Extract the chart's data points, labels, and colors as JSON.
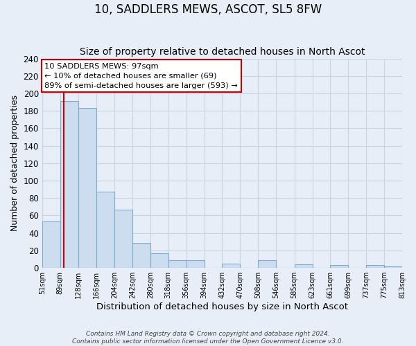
{
  "title": "10, SADDLERS MEWS, ASCOT, SL5 8FW",
  "subtitle": "Size of property relative to detached houses in North Ascot",
  "xlabel": "Distribution of detached houses by size in North Ascot",
  "ylabel": "Number of detached properties",
  "bin_edges": [
    51,
    89,
    128,
    166,
    204,
    242,
    280,
    318,
    356,
    394,
    432,
    470,
    508,
    546,
    585,
    623,
    661,
    699,
    737,
    775,
    813
  ],
  "counts": [
    53,
    191,
    183,
    87,
    67,
    29,
    17,
    9,
    9,
    0,
    5,
    0,
    9,
    0,
    4,
    0,
    3,
    0,
    3,
    2
  ],
  "bar_color": "#ccddf0",
  "bar_edge_color": "#7aaecc",
  "vline_x": 97,
  "vline_color": "#cc0000",
  "ylim": [
    0,
    240
  ],
  "yticks": [
    0,
    20,
    40,
    60,
    80,
    100,
    120,
    140,
    160,
    180,
    200,
    220,
    240
  ],
  "annotation_line1": "10 SADDLERS MEWS: 97sqm",
  "annotation_line2": "← 10% of detached houses are smaller (69)",
  "annotation_line3": "89% of semi-detached houses are larger (593) →",
  "annotation_box_color": "#ffffff",
  "annotation_border_color": "#cc0000",
  "footer_line1": "Contains HM Land Registry data © Crown copyright and database right 2024.",
  "footer_line2": "Contains public sector information licensed under the Open Government Licence v3.0.",
  "background_color": "#e8eef8",
  "grid_color": "#c8d4e4",
  "title_fontsize": 12,
  "subtitle_fontsize": 10,
  "tick_labels": [
    "51sqm",
    "89sqm",
    "128sqm",
    "166sqm",
    "204sqm",
    "242sqm",
    "280sqm",
    "318sqm",
    "356sqm",
    "394sqm",
    "432sqm",
    "470sqm",
    "508sqm",
    "546sqm",
    "585sqm",
    "623sqm",
    "661sqm",
    "699sqm",
    "737sqm",
    "775sqm",
    "813sqm"
  ]
}
